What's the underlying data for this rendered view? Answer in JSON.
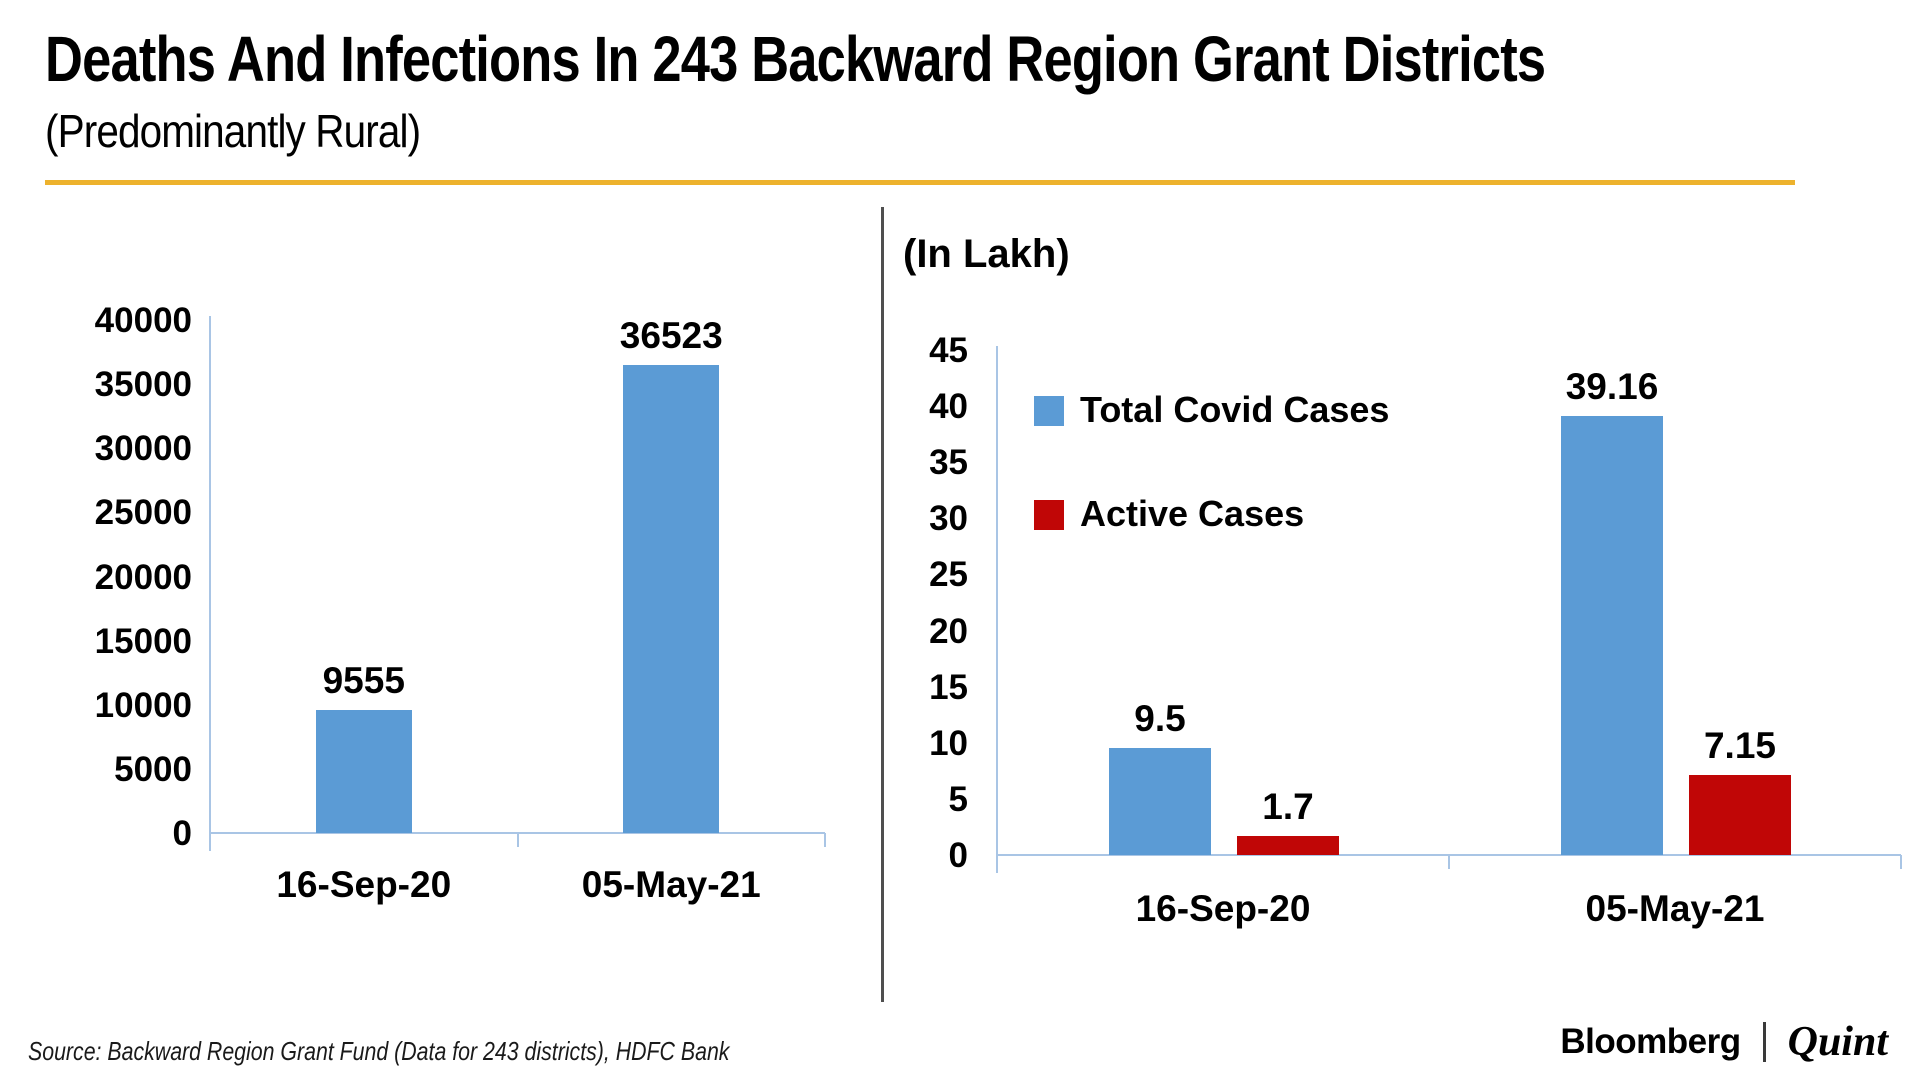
{
  "header": {
    "title": "Deaths And Infections In 243 Backward Region Grant Districts",
    "subtitle": "(Predominantly Rural)"
  },
  "colors": {
    "accent_yellow": "#EDB22D",
    "bar_blue": "#5B9BD5",
    "bar_red": "#C00606",
    "axis_light_blue": "#A9C5E5",
    "divider_gray": "#4F4F4F",
    "text_black": "#000000"
  },
  "chart_data": [
    {
      "type": "bar",
      "title": "",
      "categories": [
        "16-Sep-20",
        "05-May-21"
      ],
      "series": [
        {
          "name": "",
          "color": "#5B9BD5",
          "values": [
            9555,
            36523
          ]
        }
      ],
      "data_labels": [
        [
          "9555",
          "36523"
        ]
      ],
      "ylabel": "",
      "ylim": [
        0,
        40000
      ],
      "ytick_step": 5000,
      "grid": false,
      "legend": false
    },
    {
      "type": "bar",
      "title": "(In Lakh)",
      "categories": [
        "16-Sep-20",
        "05-May-21"
      ],
      "series": [
        {
          "name": "Total Covid Cases",
          "color": "#5B9BD5",
          "values": [
            9.5,
            39.16
          ]
        },
        {
          "name": "Active Cases",
          "color": "#C00606",
          "values": [
            1.7,
            7.15
          ]
        }
      ],
      "data_labels": [
        [
          "9.5",
          "39.16"
        ],
        [
          "1.7",
          "7.15"
        ]
      ],
      "ylabel": "(In Lakh)",
      "ylim": [
        0,
        45
      ],
      "ytick_step": 5,
      "grid": false,
      "legend": true,
      "legend_position": "upper-left-inside"
    }
  ],
  "footer": {
    "source": "Source: Backward Region Grant Fund (Data for 243 districts), HDFC Bank",
    "brand": {
      "bloomberg": "Bloomberg",
      "separator": "|",
      "quint": "Quint"
    }
  }
}
